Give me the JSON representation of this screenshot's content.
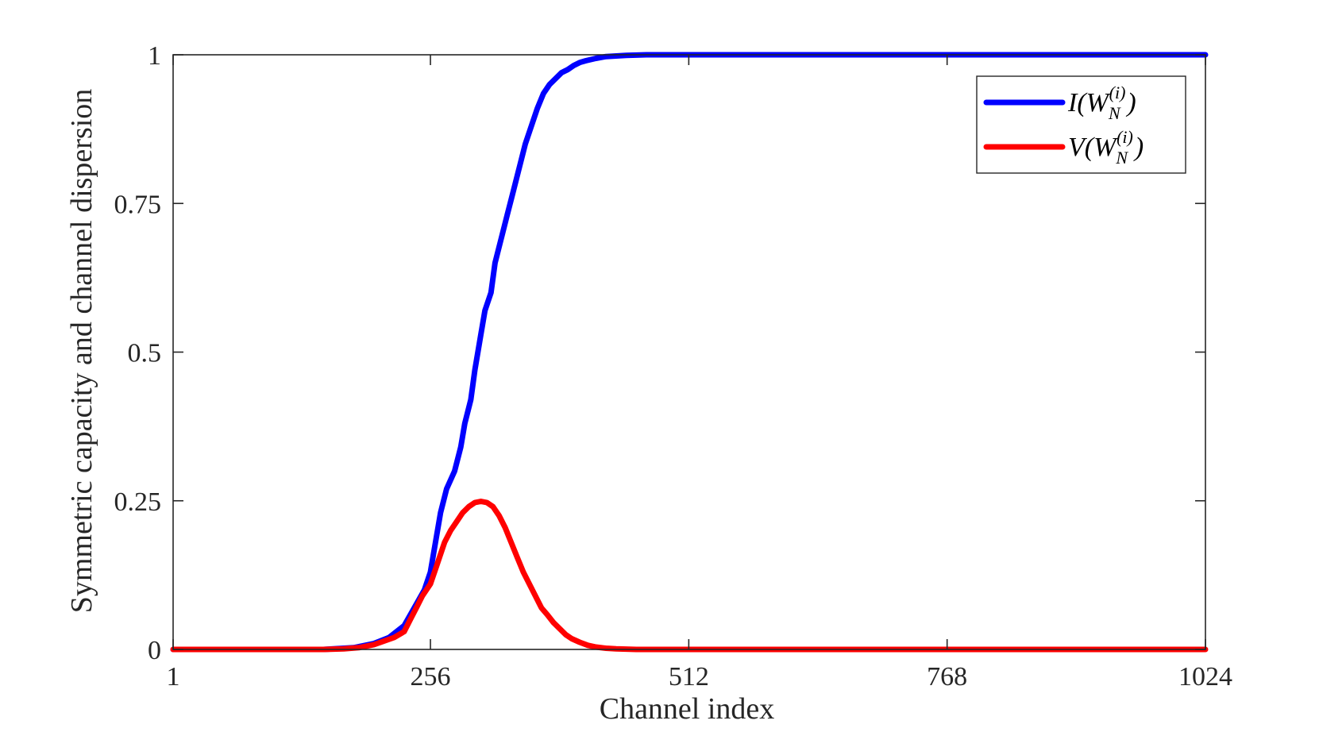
{
  "chart_data": {
    "type": "line",
    "title": "",
    "xlabel": "Channel index",
    "ylabel": "Symmetric capacity and channel dispersion",
    "xlim": [
      1,
      1024
    ],
    "ylim": [
      0,
      1
    ],
    "xticks": [
      1,
      256,
      512,
      768,
      1024
    ],
    "xtick_labels": [
      "1",
      "256",
      "512",
      "768",
      "1024"
    ],
    "yticks": [
      0,
      0.25,
      0.5,
      0.75,
      1
    ],
    "ytick_labels": [
      "0",
      "0.25",
      "0.5",
      "0.75",
      "1"
    ],
    "grid": false,
    "legend_position": "top-right",
    "series": [
      {
        "name": "I(W_N^(i))",
        "legend_main": "I(W",
        "legend_sup": "(i)",
        "legend_sub": "N",
        "legend_close": ")",
        "color": "#0000ff",
        "x": [
          1,
          150,
          180,
          200,
          215,
          230,
          240,
          250,
          256,
          260,
          266,
          272,
          280,
          286,
          290,
          296,
          300,
          306,
          310,
          316,
          320,
          326,
          332,
          338,
          344,
          350,
          356,
          362,
          368,
          374,
          380,
          386,
          392,
          398,
          404,
          410,
          420,
          430,
          440,
          450,
          470,
          500,
          550,
          600,
          800,
          1024
        ],
        "y": [
          0,
          0,
          0.003,
          0.01,
          0.02,
          0.04,
          0.07,
          0.1,
          0.13,
          0.17,
          0.23,
          0.27,
          0.3,
          0.34,
          0.38,
          0.42,
          0.47,
          0.53,
          0.57,
          0.6,
          0.65,
          0.69,
          0.73,
          0.77,
          0.81,
          0.85,
          0.88,
          0.91,
          0.935,
          0.95,
          0.96,
          0.97,
          0.975,
          0.982,
          0.987,
          0.99,
          0.994,
          0.997,
          0.998,
          0.999,
          1,
          1,
          1,
          1,
          1,
          1
        ]
      },
      {
        "name": "V(W_N^(i))",
        "legend_main": "V(W",
        "legend_sup": "(i)",
        "legend_sub": "N",
        "legend_close": ")",
        "color": "#ff0000",
        "x": [
          1,
          150,
          170,
          185,
          200,
          210,
          220,
          230,
          236,
          242,
          248,
          256,
          262,
          270,
          276,
          282,
          288,
          294,
          300,
          306,
          312,
          318,
          324,
          330,
          336,
          342,
          348,
          354,
          360,
          366,
          372,
          378,
          384,
          390,
          396,
          404,
          412,
          420,
          430,
          440,
          460,
          500,
          600,
          800,
          1024
        ],
        "y": [
          0,
          0,
          0.001,
          0.003,
          0.008,
          0.014,
          0.02,
          0.03,
          0.05,
          0.07,
          0.09,
          0.11,
          0.14,
          0.18,
          0.2,
          0.215,
          0.23,
          0.24,
          0.247,
          0.249,
          0.247,
          0.24,
          0.225,
          0.205,
          0.18,
          0.155,
          0.13,
          0.11,
          0.09,
          0.07,
          0.058,
          0.045,
          0.035,
          0.025,
          0.018,
          0.012,
          0.007,
          0.004,
          0.002,
          0.001,
          0,
          0,
          0,
          0,
          0
        ]
      }
    ]
  }
}
